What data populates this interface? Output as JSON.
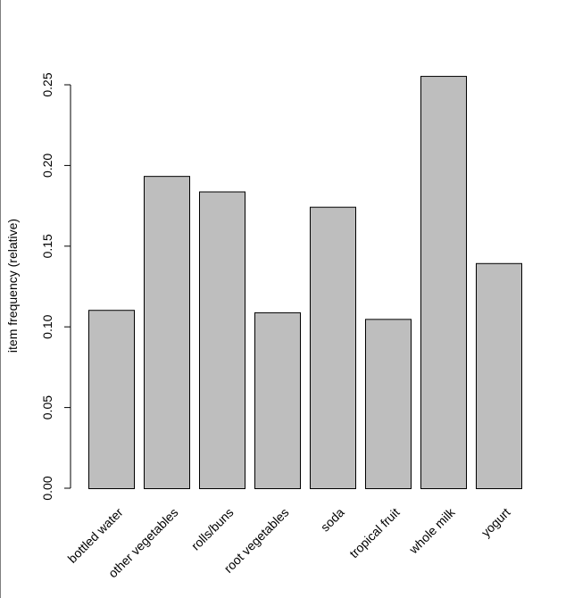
{
  "chart_data": {
    "type": "bar",
    "title": "",
    "xlabel": "",
    "ylabel": "item frequency (relative)",
    "categories": [
      "bottled water",
      "other vegetables",
      "rolls/buns",
      "root vegetables",
      "soda",
      "tropical fruit",
      "whole milk",
      "yogurt"
    ],
    "values": [
      0.1105,
      0.1935,
      0.1839,
      0.109,
      0.1744,
      0.1049,
      0.2555,
      0.1395
    ],
    "ylim": [
      0,
      0.25
    ],
    "yticks": [
      "0.00",
      "0.05",
      "0.10",
      "0.15",
      "0.20",
      "0.25"
    ],
    "grid": false,
    "bar_color": "#bebebe",
    "bar_border_color": "#000000"
  }
}
